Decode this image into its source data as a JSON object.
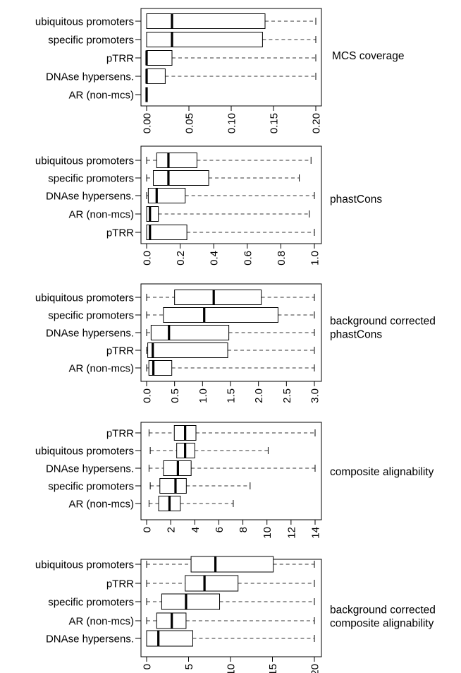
{
  "chart_data": [
    {
      "type": "boxplot",
      "title_lines": [
        "MCS coverage"
      ],
      "xlim": [
        0,
        0.2
      ],
      "ticks": [
        "0.00",
        "0.05",
        "0.10",
        "0.15",
        "0.20"
      ],
      "tick_values": [
        0,
        0.05,
        0.1,
        0.15,
        0.2
      ],
      "categories": [
        "ubiquitous promoters",
        "specific promoters",
        "pTRR",
        "DNAse hypersens.",
        "AR (non-mcs)"
      ],
      "boxes": [
        {
          "min": 0,
          "q1": 0,
          "median": 0.03,
          "q3": 0.14,
          "max": 0.2
        },
        {
          "min": 0,
          "q1": 0,
          "median": 0.03,
          "q3": 0.137,
          "max": 0.2
        },
        {
          "min": 0,
          "q1": 0,
          "median": 0,
          "q3": 0.03,
          "max": 0.2
        },
        {
          "min": 0,
          "q1": 0,
          "median": 0,
          "q3": 0.022,
          "max": 0.2
        },
        {
          "min": 0,
          "q1": 0,
          "median": 0,
          "q3": 0,
          "max": 0
        }
      ]
    },
    {
      "type": "boxplot",
      "title_lines": [
        "phastCons"
      ],
      "xlim": [
        0,
        1
      ],
      "ticks": [
        "0.0",
        "0.2",
        "0.4",
        "0.6",
        "0.8",
        "1.0"
      ],
      "tick_values": [
        0,
        0.2,
        0.4,
        0.6,
        0.8,
        1.0
      ],
      "categories": [
        "ubiquitous promoters",
        "specific promoters",
        "DNAse hypersens.",
        "AR (non-mcs)",
        "pTRR"
      ],
      "boxes": [
        {
          "min": 0,
          "q1": 0.06,
          "median": 0.13,
          "q3": 0.3,
          "max": 0.98
        },
        {
          "min": 0,
          "q1": 0.04,
          "median": 0.13,
          "q3": 0.37,
          "max": 0.91
        },
        {
          "min": 0,
          "q1": 0.01,
          "median": 0.06,
          "q3": 0.23,
          "max": 1.0
        },
        {
          "min": 0,
          "q1": 0.0,
          "median": 0.02,
          "q3": 0.07,
          "max": 0.97
        },
        {
          "min": 0,
          "q1": 0.0,
          "median": 0.02,
          "q3": 0.24,
          "max": 1.0
        }
      ]
    },
    {
      "type": "boxplot",
      "title_lines": [
        "background corrected",
        "phastCons"
      ],
      "xlim": [
        0,
        3
      ],
      "ticks": [
        "0.0",
        "0.5",
        "1.0",
        "1.5",
        "2.0",
        "2.5",
        "3.0"
      ],
      "tick_values": [
        0,
        0.5,
        1.0,
        1.5,
        2.0,
        2.5,
        3.0
      ],
      "categories": [
        "ubiquitous promoters",
        "specific promoters",
        "DNAse hypersens.",
        "pTRR",
        "AR (non-mcs)"
      ],
      "boxes": [
        {
          "min": 0,
          "q1": 0.5,
          "median": 1.2,
          "q3": 2.05,
          "max": 3.0
        },
        {
          "min": 0,
          "q1": 0.3,
          "median": 1.03,
          "q3": 2.35,
          "max": 3.0
        },
        {
          "min": 0,
          "q1": 0.08,
          "median": 0.4,
          "q3": 1.47,
          "max": 3.0
        },
        {
          "min": 0,
          "q1": 0.02,
          "median": 0.11,
          "q3": 1.45,
          "max": 3.0
        },
        {
          "min": 0,
          "q1": 0.04,
          "median": 0.12,
          "q3": 0.45,
          "max": 3.0
        }
      ]
    },
    {
      "type": "boxplot",
      "title_lines": [
        "composite alignability"
      ],
      "xlim": [
        0,
        14
      ],
      "ticks": [
        "0",
        "2",
        "4",
        "6",
        "8",
        "10",
        "12",
        "14"
      ],
      "tick_values": [
        0,
        2,
        4,
        6,
        8,
        10,
        12,
        14
      ],
      "categories": [
        "pTRR",
        "ubiquitous promoters",
        "DNAse hypersens.",
        "specific promoters",
        "AR (non-mcs)"
      ],
      "boxes": [
        {
          "min": 0.2,
          "q1": 2.3,
          "median": 3.2,
          "q3": 4.1,
          "max": 14.0
        },
        {
          "min": 0.3,
          "q1": 2.5,
          "median": 3.2,
          "q3": 4.0,
          "max": 10.1
        },
        {
          "min": 0.2,
          "q1": 1.4,
          "median": 2.6,
          "q3": 3.7,
          "max": 14.0
        },
        {
          "min": 0.3,
          "q1": 1.1,
          "median": 2.4,
          "q3": 3.3,
          "max": 8.6
        },
        {
          "min": 0.2,
          "q1": 1.0,
          "median": 1.9,
          "q3": 2.8,
          "max": 7.2
        }
      ]
    },
    {
      "type": "boxplot",
      "title_lines": [
        "background corrected",
        "composite alignability"
      ],
      "xlim": [
        0,
        20
      ],
      "ticks": [
        "0",
        "5",
        "10",
        "15",
        "20"
      ],
      "tick_values": [
        0,
        5,
        10,
        15,
        20
      ],
      "categories": [
        "ubiquitous promoters",
        "pTRR",
        "specific promoters",
        "AR (non-mcs)",
        "DNAse hypersens."
      ],
      "boxes": [
        {
          "min": 0,
          "q1": 5.3,
          "median": 8.2,
          "q3": 15.1,
          "max": 20
        },
        {
          "min": 0,
          "q1": 4.6,
          "median": 6.9,
          "q3": 10.9,
          "max": 20
        },
        {
          "min": 0,
          "q1": 1.8,
          "median": 4.7,
          "q3": 8.7,
          "max": 20
        },
        {
          "min": 0,
          "q1": 1.2,
          "median": 3.0,
          "q3": 4.7,
          "max": 20
        },
        {
          "min": 0,
          "q1": 0.0,
          "median": 1.4,
          "q3": 5.5,
          "max": 20
        }
      ]
    }
  ]
}
